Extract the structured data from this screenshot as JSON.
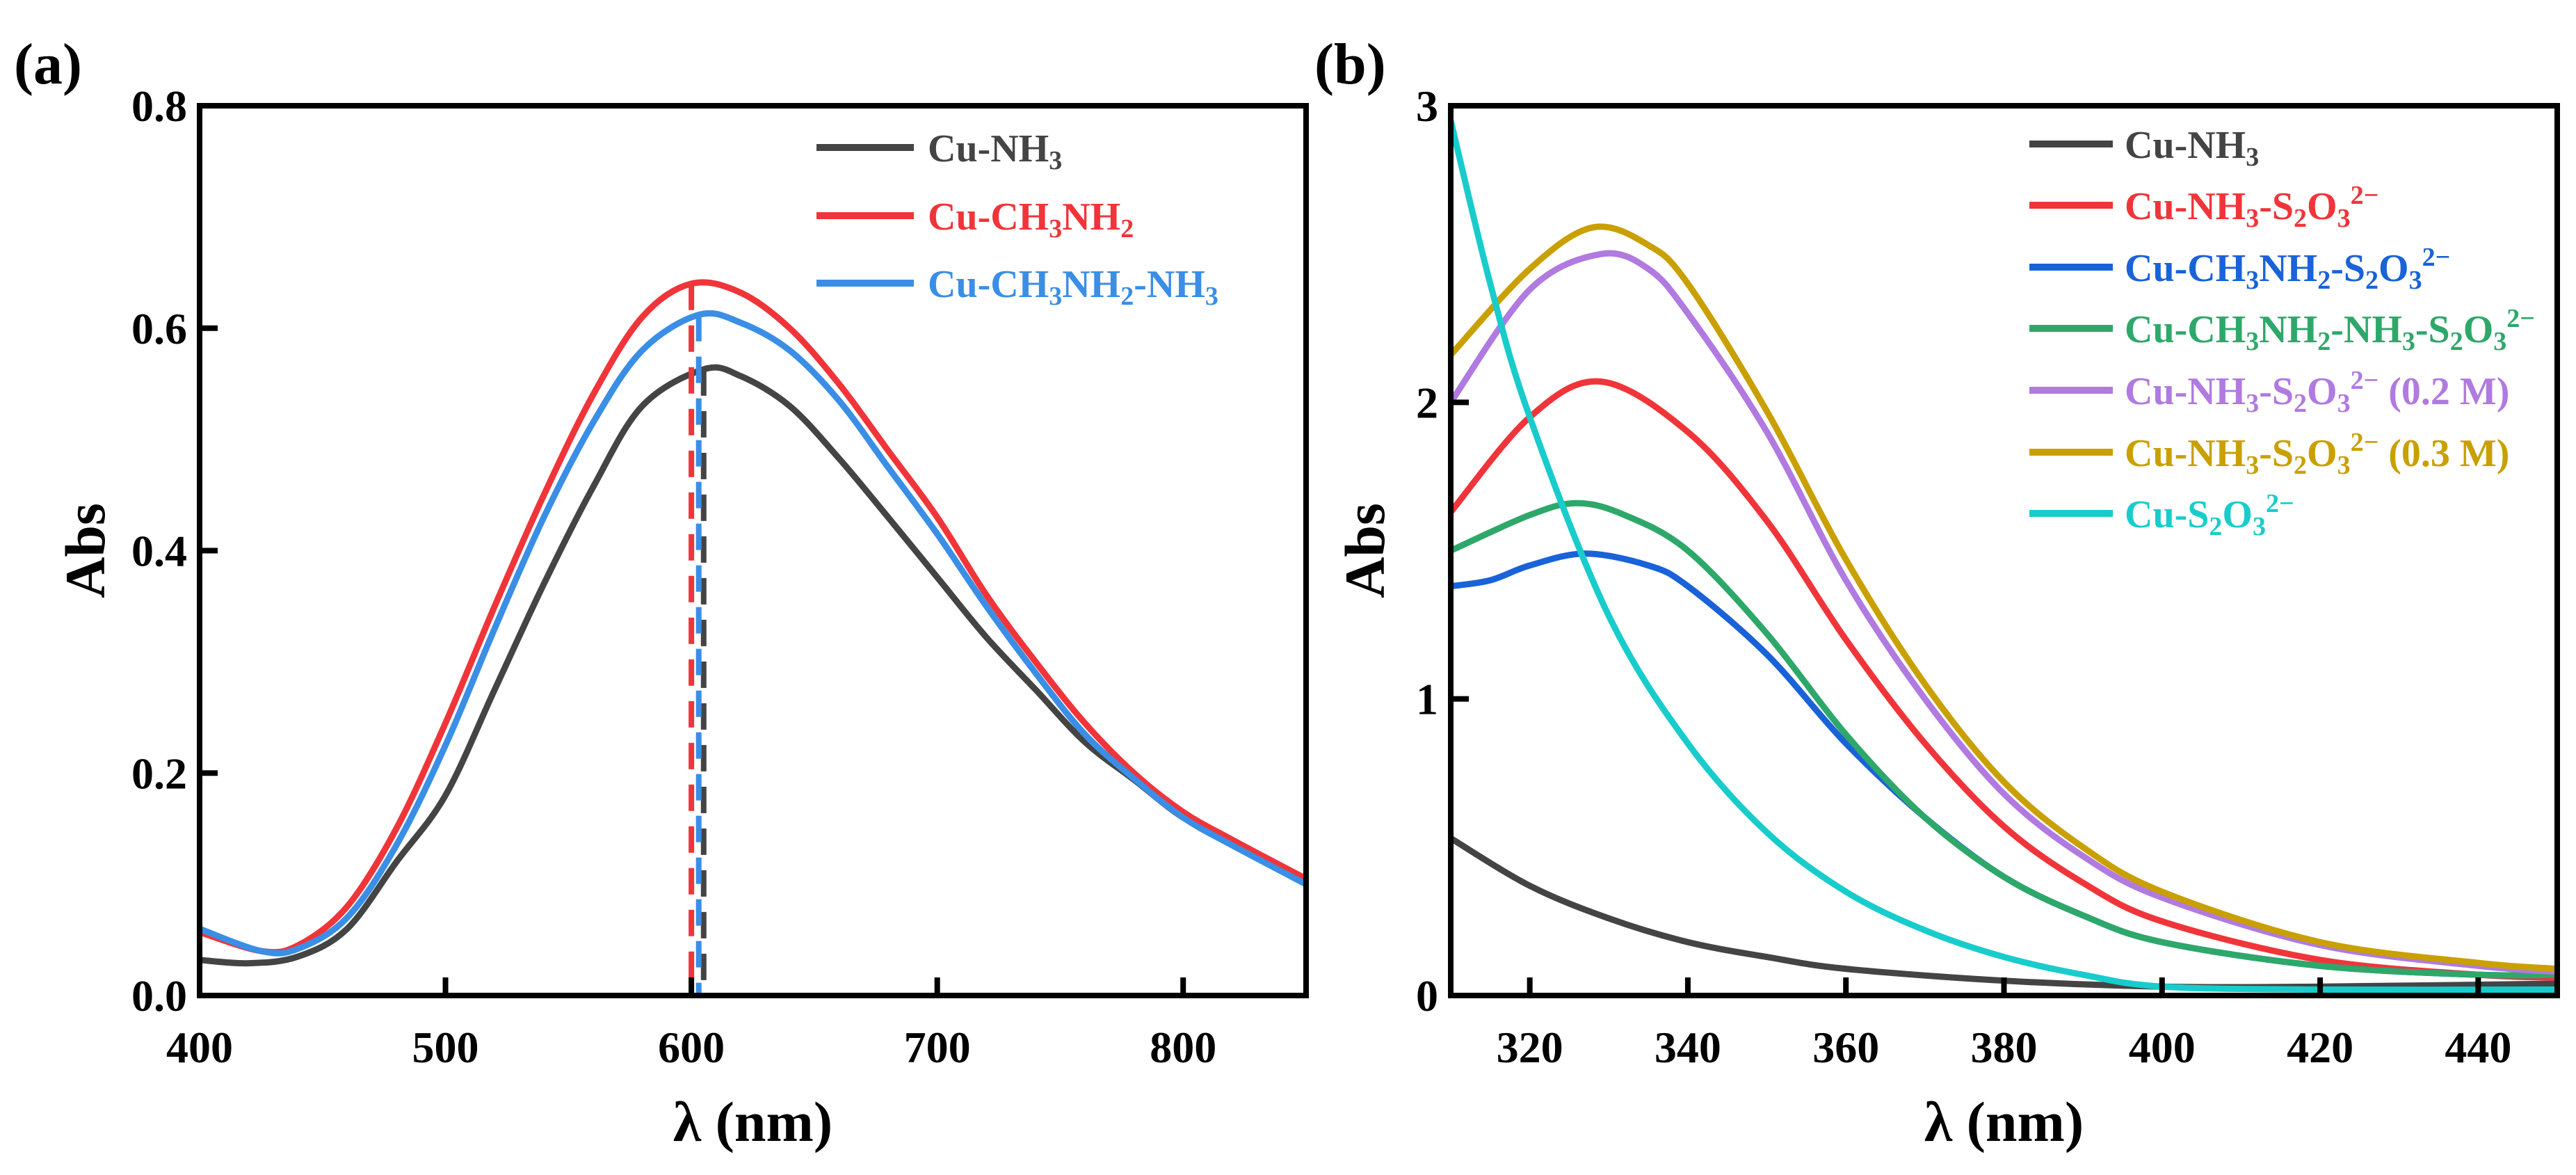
{
  "chart_data": [
    {
      "type": "line",
      "panel_label": "(a)",
      "xlabel": "λ (nm)",
      "ylabel": "Abs",
      "xlim": [
        400,
        850
      ],
      "ylim": [
        0,
        0.8
      ],
      "xticks": [
        400,
        500,
        600,
        700,
        800
      ],
      "yticks": [
        "0.0",
        "0.2",
        "0.4",
        "0.6",
        "0.8"
      ],
      "legend_position": "top-right",
      "series": [
        {
          "name": "Cu-NH3",
          "color": "#444444",
          "label_parts": [
            [
              "Cu-NH",
              ""
            ],
            [
              "3",
              "sub"
            ]
          ],
          "peak_nm": 605,
          "peak_abs": 0.563,
          "x": [
            400,
            420,
            440,
            460,
            480,
            500,
            520,
            540,
            560,
            580,
            605,
            620,
            640,
            660,
            680,
            700,
            720,
            740,
            760,
            780,
            800,
            820,
            850
          ],
          "y": [
            0.032,
            0.029,
            0.035,
            0.06,
            0.12,
            0.18,
            0.275,
            0.37,
            0.457,
            0.53,
            0.563,
            0.557,
            0.53,
            0.483,
            0.43,
            0.376,
            0.322,
            0.275,
            0.228,
            0.194,
            0.16,
            0.138,
            0.103
          ]
        },
        {
          "name": "Cu-CH3NH2",
          "color": "#f0353a",
          "label_parts": [
            [
              "Cu-CH",
              ""
            ],
            [
              "3",
              "sub"
            ],
            [
              "NH",
              ""
            ],
            [
              "2",
              "sub"
            ]
          ],
          "peak_nm": 600,
          "peak_abs": 0.64,
          "x": [
            400,
            425,
            440,
            460,
            480,
            500,
            520,
            540,
            560,
            580,
            600,
            620,
            640,
            660,
            680,
            700,
            720,
            740,
            760,
            780,
            800,
            820,
            850
          ],
          "y": [
            0.057,
            0.04,
            0.045,
            0.08,
            0.15,
            0.245,
            0.35,
            0.45,
            0.54,
            0.61,
            0.64,
            0.632,
            0.6,
            0.55,
            0.49,
            0.43,
            0.36,
            0.3,
            0.245,
            0.2,
            0.165,
            0.14,
            0.105
          ]
        },
        {
          "name": "Cu-CH3NH2-NH3",
          "color": "#3a8ee6",
          "label_parts": [
            [
              "Cu-CH",
              ""
            ],
            [
              "3",
              "sub"
            ],
            [
              "NH",
              ""
            ],
            [
              "2",
              "sub"
            ],
            [
              "-NH",
              ""
            ],
            [
              "3",
              "sub"
            ]
          ],
          "peak_nm": 603,
          "peak_abs": 0.612,
          "x": [
            400,
            425,
            440,
            460,
            480,
            500,
            520,
            540,
            560,
            580,
            603,
            620,
            640,
            660,
            680,
            700,
            720,
            740,
            760,
            780,
            800,
            820,
            850
          ],
          "y": [
            0.06,
            0.04,
            0.042,
            0.07,
            0.135,
            0.225,
            0.33,
            0.43,
            0.515,
            0.58,
            0.612,
            0.605,
            0.58,
            0.535,
            0.475,
            0.415,
            0.35,
            0.29,
            0.235,
            0.195,
            0.16,
            0.135,
            0.1
          ]
        }
      ]
    },
    {
      "type": "line",
      "panel_label": "(b)",
      "xlabel": "λ (nm)",
      "ylabel": "Abs",
      "xlim": [
        310,
        450
      ],
      "ylim": [
        0,
        3
      ],
      "xticks": [
        320,
        340,
        360,
        380,
        400,
        420,
        440
      ],
      "yticks": [
        "0",
        "1",
        "2",
        "3"
      ],
      "legend_position": "top-right",
      "series": [
        {
          "name": "Cu-NH3",
          "color": "#444444",
          "label_parts": [
            [
              "Cu-NH",
              ""
            ],
            [
              "3",
              "sub"
            ]
          ],
          "x": [
            310,
            320,
            330,
            340,
            350,
            360,
            380,
            400,
            420,
            450
          ],
          "y": [
            0.53,
            0.37,
            0.26,
            0.18,
            0.13,
            0.09,
            0.05,
            0.03,
            0.03,
            0.04
          ]
        },
        {
          "name": "Cu-NH3-S2O3 2-",
          "color": "#f0353a",
          "label_parts": [
            [
              "Cu-NH",
              ""
            ],
            [
              "3",
              "sub"
            ],
            [
              "-S",
              ""
            ],
            [
              "2",
              "sub"
            ],
            [
              "O",
              ""
            ],
            [
              "3",
              "sub"
            ],
            [
              "2−",
              "sup"
            ]
          ],
          "x": [
            310,
            320,
            329,
            340,
            350,
            360,
            370,
            380,
            390,
            400,
            420,
            440,
            450
          ],
          "y": [
            1.63,
            1.95,
            2.07,
            1.9,
            1.6,
            1.2,
            0.85,
            0.57,
            0.38,
            0.25,
            0.12,
            0.07,
            0.06
          ]
        },
        {
          "name": "Cu-CH3NH2-S2O3 2-",
          "color": "#1a62d8",
          "label_parts": [
            [
              "Cu-CH",
              ""
            ],
            [
              "3",
              "sub"
            ],
            [
              "NH",
              ""
            ],
            [
              "2",
              "sub"
            ],
            [
              "-S",
              ""
            ],
            [
              "2",
              "sub"
            ],
            [
              "O",
              ""
            ],
            [
              "3",
              "sub"
            ],
            [
              "2−",
              "sup"
            ]
          ],
          "x": [
            310,
            315,
            320,
            327,
            335,
            340,
            350,
            360,
            370,
            380,
            390,
            400,
            420,
            440,
            450
          ],
          "y": [
            1.38,
            1.4,
            1.45,
            1.49,
            1.45,
            1.38,
            1.15,
            0.85,
            0.6,
            0.4,
            0.27,
            0.18,
            0.1,
            0.07,
            0.07
          ]
        },
        {
          "name": "Cu-CH3NH2-NH3-S2O3 2-",
          "color": "#2ea86a",
          "label_parts": [
            [
              "Cu-CH",
              ""
            ],
            [
              "3",
              "sub"
            ],
            [
              "NH",
              ""
            ],
            [
              "2",
              "sub"
            ],
            [
              "-NH",
              ""
            ],
            [
              "3",
              "sub"
            ],
            [
              "-S",
              ""
            ],
            [
              "2",
              "sub"
            ],
            [
              "O",
              ""
            ],
            [
              "3",
              "sub"
            ],
            [
              "2−",
              "sup"
            ]
          ],
          "x": [
            310,
            320,
            326,
            332,
            340,
            350,
            360,
            370,
            380,
            390,
            400,
            420,
            440,
            450
          ],
          "y": [
            1.5,
            1.62,
            1.66,
            1.62,
            1.5,
            1.22,
            0.88,
            0.6,
            0.4,
            0.27,
            0.18,
            0.1,
            0.07,
            0.07
          ]
        },
        {
          "name": "Cu-NH3-S2O3 2- (0.2 M)",
          "color": "#b07ae0",
          "label_parts": [
            [
              "Cu-NH",
              ""
            ],
            [
              "3",
              "sub"
            ],
            [
              "-S",
              ""
            ],
            [
              "2",
              "sub"
            ],
            [
              "O",
              ""
            ],
            [
              "3",
              "sub"
            ],
            [
              "2−",
              "sup"
            ],
            [
              " (0.2 M)",
              ""
            ]
          ],
          "x": [
            310,
            320,
            329,
            335,
            340,
            350,
            360,
            370,
            380,
            390,
            400,
            420,
            440,
            450
          ],
          "y": [
            2.0,
            2.38,
            2.5,
            2.45,
            2.3,
            1.9,
            1.4,
            1.0,
            0.68,
            0.47,
            0.33,
            0.17,
            0.1,
            0.08
          ]
        },
        {
          "name": "Cu-NH3-S2O3 2- (0.3 M)",
          "color": "#c9a000",
          "label_parts": [
            [
              "Cu-NH",
              ""
            ],
            [
              "3",
              "sub"
            ],
            [
              "-S",
              ""
            ],
            [
              "2",
              "sub"
            ],
            [
              "O",
              ""
            ],
            [
              "3",
              "sub"
            ],
            [
              "2−",
              "sup"
            ],
            [
              " (0.3 M)",
              ""
            ]
          ],
          "x": [
            310,
            320,
            328,
            335,
            340,
            350,
            360,
            370,
            380,
            390,
            400,
            420,
            440,
            450
          ],
          "y": [
            2.16,
            2.45,
            2.59,
            2.53,
            2.4,
            1.97,
            1.47,
            1.05,
            0.72,
            0.5,
            0.35,
            0.18,
            0.11,
            0.09
          ]
        },
        {
          "name": "Cu-S2O3 2-",
          "color": "#19cccc",
          "label_parts": [
            [
              "Cu-S",
              ""
            ],
            [
              "2",
              "sub"
            ],
            [
              "O",
              ""
            ],
            [
              "3",
              "sub"
            ],
            [
              "2−",
              "sup"
            ]
          ],
          "x": [
            310,
            315,
            320,
            330,
            340,
            350,
            360,
            370,
            380,
            390,
            400,
            420,
            450
          ],
          "y": [
            2.95,
            2.4,
            1.95,
            1.28,
            0.85,
            0.55,
            0.35,
            0.22,
            0.13,
            0.07,
            0.03,
            0.02,
            0.02
          ]
        }
      ]
    }
  ]
}
